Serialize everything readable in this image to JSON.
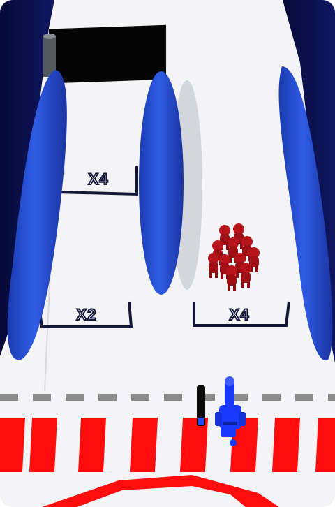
{
  "gates": [
    {
      "id": "gate-top",
      "label": "X4"
    },
    {
      "id": "gate-left",
      "label": "X2"
    },
    {
      "id": "gate-right",
      "label": "X4"
    }
  ],
  "colors": {
    "track": "#f4f4f6",
    "wall_navy": "#0a0f4a",
    "pillar_blue": "#2550d8",
    "enemy_red": "#b5141a",
    "cannon_blue": "#1a39ff",
    "stripe_red": "#ff0d0d",
    "dash_gray": "#8a8a8a",
    "banner_black": "#050505"
  },
  "enemy_crowd": {
    "count": 11
  },
  "icons": [
    "cannon-icon",
    "ammo-bar-icon"
  ]
}
